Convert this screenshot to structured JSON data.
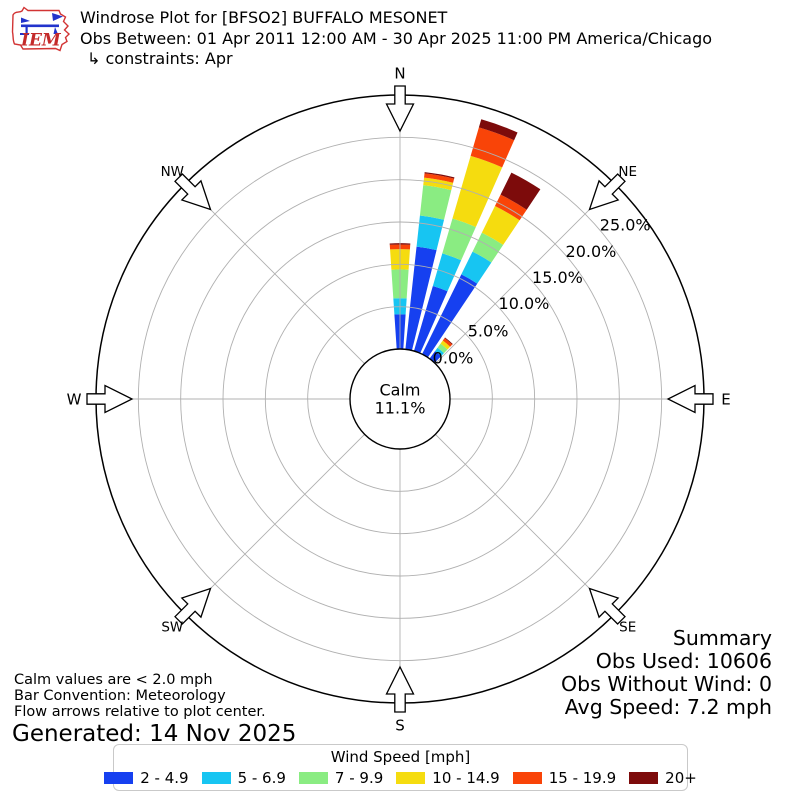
{
  "header": {
    "logo_text": "IEM",
    "title": "Windrose Plot for [BFSO2] BUFFALO MESONET",
    "subtitle": "Obs Between: 01 Apr 2011 12:00 AM - 30 Apr 2025 11:00 PM America/Chicago",
    "constraint": "↳ constraints: Apr"
  },
  "calm": {
    "label": "Calm",
    "value": "11.1%"
  },
  "notes": {
    "lines": [
      "Calm values are < 2.0 mph",
      "Bar Convention: Meteorology",
      "Flow arrows relative to plot center."
    ],
    "generated": "Generated: 14 Nov 2025"
  },
  "summary": {
    "title": "Summary",
    "obs_used": "Obs Used: 10606",
    "obs_without_wind": "Obs Without Wind: 0",
    "avg_speed": "Avg Speed: 7.2 mph"
  },
  "legend": {
    "title": "Wind Speed [mph]"
  },
  "chart_data": {
    "type": "windrose",
    "station": "[BFSO2] BUFFALO MESONET",
    "units": "mph",
    "calm_percent": 11.1,
    "avg_speed_mph": 7.2,
    "obs_used": 10606,
    "obs_without_wind": 0,
    "sector_width_deg": 7.6,
    "outer_ring_percent": 30,
    "rings_percent": [
      5,
      10,
      15,
      20,
      25
    ],
    "ring_labels": [
      {
        "label": "0.0%",
        "percent": 0
      },
      {
        "label": "5.0%",
        "percent": 5
      },
      {
        "label": "10.0%",
        "percent": 10
      },
      {
        "label": "15.0%",
        "percent": 15
      },
      {
        "label": "20.0%",
        "percent": 20
      },
      {
        "label": "25.0%",
        "percent": 25
      }
    ],
    "compass": [
      {
        "label": "N",
        "deg": 0
      },
      {
        "label": "NE",
        "deg": 45
      },
      {
        "label": "E",
        "deg": 90
      },
      {
        "label": "SE",
        "deg": 135
      },
      {
        "label": "S",
        "deg": 180
      },
      {
        "label": "SW",
        "deg": 225
      },
      {
        "label": "W",
        "deg": 270
      },
      {
        "label": "NW",
        "deg": 315
      }
    ],
    "speed_bins": [
      {
        "label": "2 - 4.9",
        "color": "#1640f0"
      },
      {
        "label": "5 - 6.9",
        "color": "#17c5f2"
      },
      {
        "label": "7 - 9.9",
        "color": "#8aec82"
      },
      {
        "label": "10 - 14.9",
        "color": "#f5dc0f"
      },
      {
        "label": "15 - 19.9",
        "color": "#f94408"
      },
      {
        "label": "20+",
        "color": "#7d0b0b"
      }
    ],
    "series": [
      {
        "direction_deg": 0,
        "values": [
          4.1,
          1.9,
          3.4,
          2.4,
          0.55,
          0.15
        ]
      },
      {
        "direction_deg": 10,
        "values": [
          12.2,
          3.7,
          3.6,
          0.9,
          0.5,
          0.15
        ]
      },
      {
        "direction_deg": 20,
        "values": [
          8.0,
          4.0,
          4.3,
          7.7,
          3.5,
          1.0
        ]
      },
      {
        "direction_deg": 30,
        "values": [
          10.5,
          3.0,
          2.5,
          3.5,
          1.5,
          2.9
        ]
      },
      {
        "direction_deg": 40,
        "values": [
          1.1,
          0.5,
          0.6,
          0.45,
          0.35,
          0.1
        ]
      }
    ]
  }
}
